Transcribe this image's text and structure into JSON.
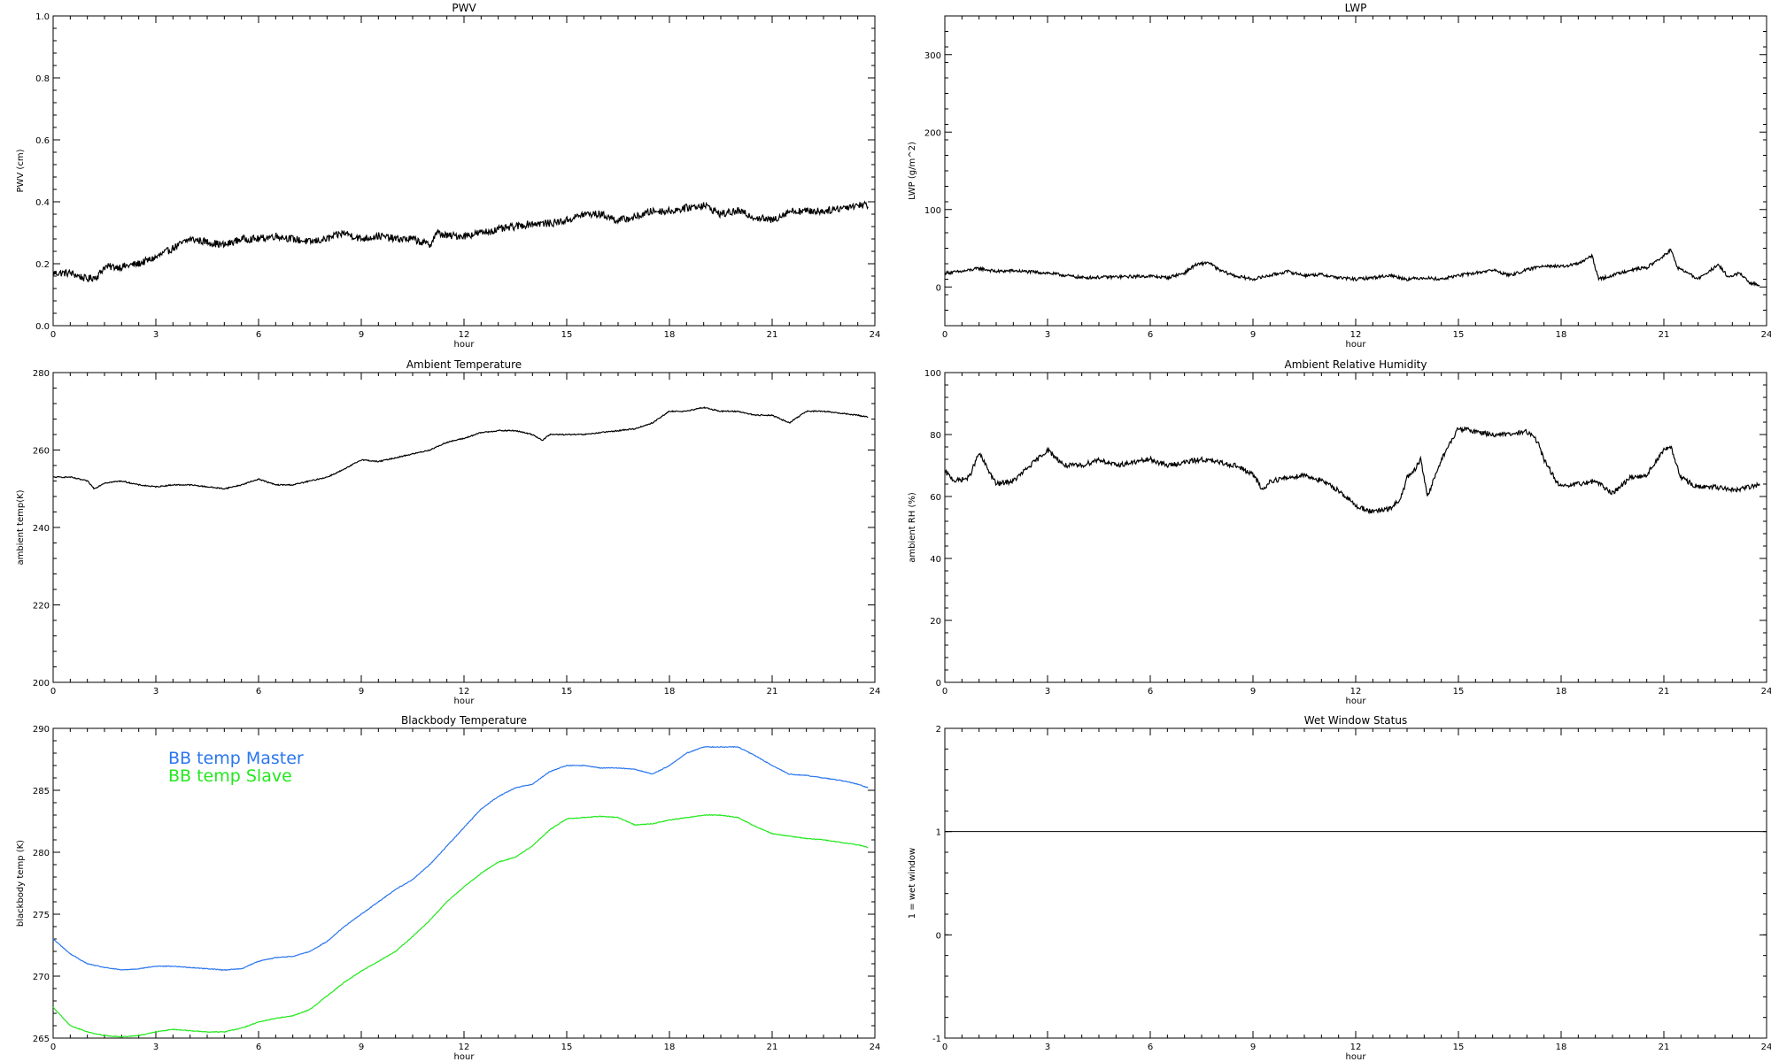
{
  "panels": [
    {
      "id": "pwv",
      "chart_data": {
        "type": "line",
        "title": "PWV",
        "xlabel": "hour",
        "ylabel": "PWV (cm)",
        "xlim": [
          0,
          24
        ],
        "ylim": [
          0,
          1.0
        ],
        "xticks": [
          0,
          3,
          6,
          9,
          12,
          15,
          18,
          21,
          24
        ],
        "xtick_labels": [
          "0",
          "3",
          "6",
          "9",
          "12",
          "15",
          "18",
          "21",
          "24"
        ],
        "yticks": [
          0,
          0.2,
          0.4,
          0.6,
          0.8,
          1.0
        ],
        "ytick_labels": [
          "0.0",
          "0.2",
          "0.4",
          "0.6",
          "0.8",
          "1.0"
        ],
        "noise": 0.012,
        "series": [
          {
            "color": "#000000",
            "x": [
              0,
              0.5,
              1,
              1.3,
              1.5,
              2,
              2.5,
              3,
              3.5,
              4,
              4.5,
              5,
              5.5,
              6,
              6.5,
              7,
              7.5,
              8,
              8.5,
              9,
              9.5,
              10,
              10.5,
              11,
              11.2,
              11.5,
              12,
              12.5,
              13,
              13.5,
              14,
              14.5,
              15,
              15.5,
              16,
              16.5,
              17,
              17.5,
              18,
              18.5,
              19,
              19.5,
              20,
              20.5,
              21,
              21.5,
              22,
              22.5,
              23,
              23.5,
              23.8
            ],
            "y": [
              0.17,
              0.17,
              0.15,
              0.16,
              0.19,
              0.19,
              0.2,
              0.22,
              0.25,
              0.28,
              0.27,
              0.26,
              0.28,
              0.28,
              0.29,
              0.28,
              0.27,
              0.28,
              0.3,
              0.28,
              0.29,
              0.28,
              0.28,
              0.26,
              0.3,
              0.29,
              0.29,
              0.3,
              0.31,
              0.32,
              0.33,
              0.33,
              0.34,
              0.36,
              0.36,
              0.34,
              0.35,
              0.37,
              0.37,
              0.38,
              0.39,
              0.36,
              0.37,
              0.35,
              0.34,
              0.37,
              0.37,
              0.37,
              0.38,
              0.39,
              0.39
            ]
          }
        ]
      }
    },
    {
      "id": "lwp",
      "chart_data": {
        "type": "line",
        "title": "LWP",
        "xlabel": "hour",
        "ylabel": "LWP (g/m^2)",
        "xlim": [
          0,
          24
        ],
        "ylim": [
          -50,
          350
        ],
        "xticks": [
          0,
          3,
          6,
          9,
          12,
          15,
          18,
          21,
          24
        ],
        "xtick_labels": [
          "0",
          "3",
          "6",
          "9",
          "12",
          "15",
          "18",
          "21",
          "24"
        ],
        "yticks": [
          0,
          100,
          200,
          300
        ],
        "ytick_labels": [
          "0",
          "100",
          "200",
          "300"
        ],
        "noise": 2.0,
        "series": [
          {
            "color": "#000000",
            "x": [
              0,
              0.5,
              1,
              1.5,
              2,
              3,
              4,
              5,
              6,
              6.5,
              7,
              7.3,
              7.7,
              8,
              8.5,
              9,
              9.5,
              10,
              10.5,
              11,
              11.5,
              12,
              12.5,
              13,
              13.5,
              14,
              14.5,
              15,
              15.5,
              16,
              16.5,
              17,
              17.5,
              18,
              18.5,
              18.9,
              19.1,
              19.5,
              20,
              20.5,
              21,
              21.2,
              21.4,
              21.7,
              22,
              22.3,
              22.6,
              22.9,
              23.2,
              23.5,
              23.8
            ],
            "y": [
              18,
              20,
              24,
              20,
              21,
              18,
              12,
              13,
              14,
              12,
              18,
              28,
              32,
              22,
              14,
              10,
              15,
              20,
              15,
              16,
              12,
              10,
              12,
              15,
              10,
              12,
              10,
              15,
              18,
              22,
              15,
              22,
              28,
              26,
              30,
              40,
              10,
              15,
              22,
              25,
              40,
              48,
              25,
              18,
              10,
              20,
              28,
              12,
              18,
              5,
              3
            ]
          }
        ]
      }
    },
    {
      "id": "ambient-temp",
      "chart_data": {
        "type": "line",
        "title": "Ambient Temperature",
        "xlabel": "hour",
        "ylabel": "ambient temp(K)",
        "xlim": [
          0,
          24
        ],
        "ylim": [
          200,
          280
        ],
        "xticks": [
          0,
          3,
          6,
          9,
          12,
          15,
          18,
          21,
          24
        ],
        "xtick_labels": [
          "0",
          "3",
          "6",
          "9",
          "12",
          "15",
          "18",
          "21",
          "24"
        ],
        "yticks": [
          200,
          220,
          240,
          260,
          280
        ],
        "ytick_labels": [
          "200",
          "220",
          "240",
          "260",
          "280"
        ],
        "noise": 0.15,
        "series": [
          {
            "color": "#000000",
            "x": [
              0,
              0.5,
              1,
              1.2,
              1.5,
              2,
              2.5,
              3,
              3.5,
              4,
              4.5,
              5,
              5.5,
              6,
              6.5,
              7,
              7.5,
              8,
              8.5,
              9,
              9.5,
              10,
              10.5,
              11,
              11.5,
              12,
              12.5,
              13,
              13.5,
              14,
              14.3,
              14.5,
              15,
              15.5,
              16,
              16.5,
              17,
              17.5,
              18,
              18.5,
              19,
              19.5,
              20,
              20.5,
              21,
              21.5,
              22,
              22.5,
              23,
              23.5,
              23.8
            ],
            "y": [
              253,
              253,
              252,
              250,
              251.5,
              252,
              251,
              250.5,
              251,
              251,
              250.5,
              250,
              251,
              252.5,
              251,
              251,
              252,
              253,
              255,
              257.5,
              257,
              258,
              259,
              260,
              262,
              263,
              264.5,
              265,
              265,
              264,
              262.5,
              264,
              264,
              264,
              264.5,
              265,
              265.5,
              267,
              270,
              270,
              271,
              270,
              270,
              269,
              269,
              267,
              270,
              270,
              269.5,
              269,
              268.5
            ]
          }
        ]
      }
    },
    {
      "id": "ambient-rh",
      "chart_data": {
        "type": "line",
        "title": "Ambient Relative Humidity",
        "xlabel": "hour",
        "ylabel": "ambient RH (%)",
        "xlim": [
          0,
          24
        ],
        "ylim": [
          0,
          100
        ],
        "xticks": [
          0,
          3,
          6,
          9,
          12,
          15,
          18,
          21,
          24
        ],
        "xtick_labels": [
          "0",
          "3",
          "6",
          "9",
          "12",
          "15",
          "18",
          "21",
          "24"
        ],
        "yticks": [
          0,
          20,
          40,
          60,
          80,
          100
        ],
        "ytick_labels": [
          "0",
          "20",
          "40",
          "60",
          "80",
          "100"
        ],
        "noise": 0.8,
        "series": [
          {
            "color": "#000000",
            "x": [
              0,
              0.3,
              0.7,
              1,
              1.2,
              1.5,
              2,
              2.5,
              3,
              3.5,
              4,
              4.5,
              5,
              5.5,
              6,
              6.5,
              7,
              7.5,
              8,
              8.5,
              9,
              9.3,
              9.5,
              10,
              10.5,
              11,
              11.5,
              12,
              12.5,
              13,
              13.3,
              13.5,
              13.7,
              13.9,
              14.1,
              14.3,
              14.5,
              14.8,
              15,
              15.5,
              16,
              16.5,
              17,
              17.3,
              17.5,
              17.8,
              18,
              18.5,
              19,
              19.5,
              20,
              20.5,
              21,
              21.2,
              21.5,
              22,
              22.5,
              23,
              23.5,
              23.8
            ],
            "y": [
              68,
              65,
              66,
              74,
              70,
              64,
              65,
              70,
              75,
              70,
              70,
              72,
              70,
              71,
              72,
              70,
              71,
              72,
              71,
              70,
              67,
              62,
              65,
              66,
              67,
              65,
              62,
              57,
              55,
              56,
              59,
              66,
              68,
              72,
              60,
              66,
              72,
              78,
              82,
              81,
              80,
              80,
              81,
              78,
              72,
              66,
              63,
              64,
              65,
              61,
              66,
              67,
              75,
              76,
              66,
              63,
              63,
              62,
              63,
              64
            ]
          }
        ]
      }
    },
    {
      "id": "blackbody-temp",
      "chart_data": {
        "type": "line",
        "title": "Blackbody Temperature",
        "xlabel": "hour",
        "ylabel": "blackbody temp (K)",
        "xlim": [
          0,
          24
        ],
        "ylim": [
          265,
          290
        ],
        "xticks": [
          0,
          3,
          6,
          9,
          12,
          15,
          18,
          21,
          24
        ],
        "xtick_labels": [
          "0",
          "3",
          "6",
          "9",
          "12",
          "15",
          "18",
          "21",
          "24"
        ],
        "yticks": [
          265,
          270,
          275,
          280,
          285,
          290
        ],
        "ytick_labels": [
          "265",
          "270",
          "275",
          "280",
          "285",
          "290"
        ],
        "noise": 0.03,
        "legend": [
          "BB temp Master",
          "BB temp Slave"
        ],
        "series": [
          {
            "name": "BB temp Master",
            "color": "#2a76ee",
            "x": [
              0,
              0.5,
              1,
              1.5,
              2,
              2.5,
              3,
              3.5,
              4,
              4.5,
              5,
              5.5,
              6,
              6.5,
              7,
              7.5,
              8,
              8.5,
              9,
              9.5,
              10,
              10.5,
              11,
              11.5,
              12,
              12.5,
              13,
              13.5,
              14,
              14.5,
              15,
              15.5,
              16,
              16.5,
              17,
              17.5,
              18,
              18.5,
              19,
              19.5,
              20,
              20.5,
              21,
              21.5,
              22,
              22.5,
              23,
              23.5,
              23.8
            ],
            "y": [
              273,
              271.8,
              271,
              270.7,
              270.5,
              270.6,
              270.8,
              270.8,
              270.7,
              270.6,
              270.5,
              270.6,
              271.2,
              271.5,
              271.6,
              272,
              272.8,
              274,
              275,
              276,
              277,
              277.8,
              279,
              280.5,
              282,
              283.5,
              284.5,
              285.2,
              285.5,
              286.5,
              287,
              287,
              286.8,
              286.8,
              286.7,
              286.3,
              287,
              288,
              288.5,
              288.5,
              288.5,
              287.8,
              287,
              286.3,
              286.2,
              286,
              285.8,
              285.5,
              285.2
            ]
          },
          {
            "name": "BB temp Slave",
            "color": "#22e81c",
            "x": [
              0,
              0.5,
              1,
              1.5,
              2,
              2.5,
              3,
              3.5,
              4,
              4.5,
              5,
              5.5,
              6,
              6.5,
              7,
              7.5,
              8,
              8.5,
              9,
              9.5,
              10,
              10.5,
              11,
              11.5,
              12,
              12.5,
              13,
              13.5,
              14,
              14.5,
              15,
              15.5,
              16,
              16.5,
              17,
              17.5,
              18,
              18.5,
              19,
              19.5,
              20,
              20.5,
              21,
              21.5,
              22,
              22.5,
              23,
              23.5,
              23.8
            ],
            "y": [
              267.5,
              266,
              265.5,
              265.2,
              265.1,
              265.2,
              265.5,
              265.7,
              265.6,
              265.5,
              265.5,
              265.8,
              266.3,
              266.6,
              266.8,
              267.3,
              268.4,
              269.5,
              270.4,
              271.2,
              272,
              273.2,
              274.5,
              276,
              277.2,
              278.3,
              279.2,
              279.6,
              280.5,
              281.8,
              282.7,
              282.8,
              282.9,
              282.8,
              282.2,
              282.3,
              282.6,
              282.8,
              283,
              283,
              282.8,
              282.1,
              281.5,
              281.3,
              281.1,
              281,
              280.8,
              280.6,
              280.4
            ]
          }
        ]
      }
    },
    {
      "id": "wet-window",
      "chart_data": {
        "type": "line",
        "title": "Wet Window Status",
        "xlabel": "hour",
        "ylabel": "1 = wet window",
        "xlim": [
          0,
          24
        ],
        "ylim": [
          -1,
          2
        ],
        "xticks": [
          0,
          3,
          6,
          9,
          12,
          15,
          18,
          21,
          24
        ],
        "xtick_labels": [
          "0",
          "3",
          "6",
          "9",
          "12",
          "15",
          "18",
          "21",
          "24"
        ],
        "yticks": [
          -1,
          0,
          1,
          2
        ],
        "ytick_labels": [
          "-1",
          "0",
          "1",
          "2"
        ],
        "noise": 0,
        "series": [
          {
            "color": "#000000",
            "x": [
              0,
              23.8
            ],
            "y": [
              1,
              1
            ]
          }
        ]
      }
    }
  ]
}
